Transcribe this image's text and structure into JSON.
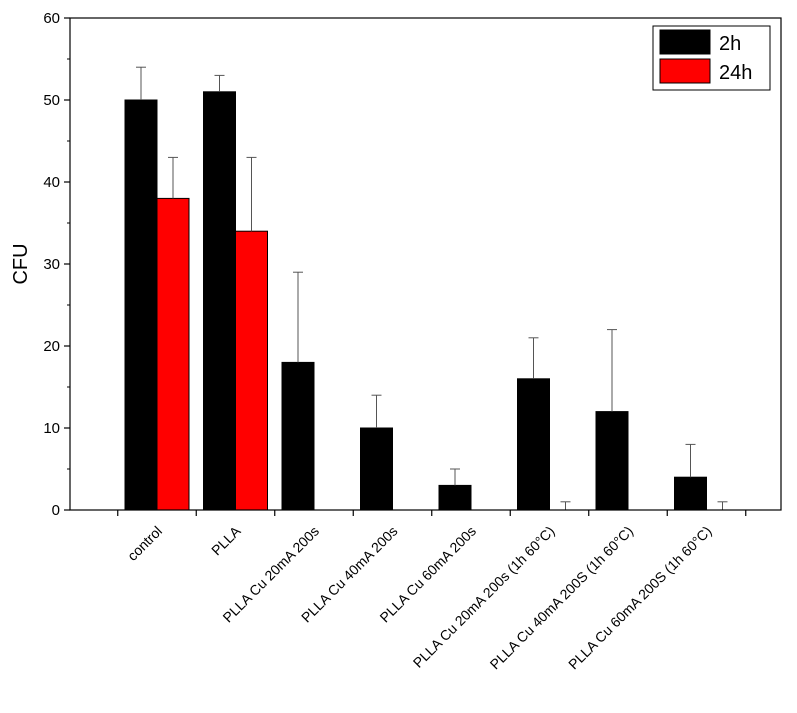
{
  "chart_data": {
    "type": "bar",
    "title": "",
    "xlabel": "",
    "ylabel": "CFU",
    "ylim": [
      0,
      60
    ],
    "yticks": [
      0,
      10,
      20,
      30,
      40,
      50,
      60
    ],
    "ytick_labels": [
      "0",
      "10",
      "20",
      "30",
      "40",
      "50",
      "60"
    ],
    "grid": false,
    "legend_position": "top-right",
    "categories": [
      "control",
      "PLLA",
      "PLLA Cu 20mA 200s",
      "PLLA Cu 40mA 200s",
      "PLLA Cu 60mA 200s",
      "PLLA Cu 20mA 200s (1h 60°C)",
      "PLLA Cu 40mA 200S (1h 60°C)",
      "PLLA Cu 60mA 200S (1h 60°C)"
    ],
    "series": [
      {
        "name": "2h",
        "color": "#000000",
        "values": [
          50,
          51,
          18,
          10,
          3,
          16,
          12,
          4
        ],
        "errors": [
          4,
          2,
          11,
          4,
          2,
          5,
          10,
          4
        ]
      },
      {
        "name": "24h",
        "color": "#ff0000",
        "values": [
          38,
          34,
          0,
          0,
          0,
          0,
          0,
          0
        ],
        "errors": [
          5,
          9,
          0,
          0,
          0,
          1,
          0,
          1
        ]
      }
    ]
  }
}
